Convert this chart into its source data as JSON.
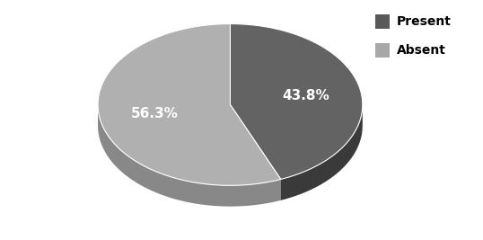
{
  "labels": [
    "Present",
    "Absent"
  ],
  "values": [
    43.8,
    56.3
  ],
  "colors_top": [
    "#636363",
    "#b0b0b0"
  ],
  "colors_side": [
    "#3a3a3a",
    "#888888"
  ],
  "label_texts": [
    "43.8%",
    "56.3%"
  ],
  "legend_labels": [
    "Present",
    "Absent"
  ],
  "legend_colors": [
    "#595959",
    "#a8a8a8"
  ],
  "background_color": "#ffffff",
  "text_color": "#ffffff",
  "font_size": 11,
  "legend_font_size": 10,
  "startangle": 90
}
